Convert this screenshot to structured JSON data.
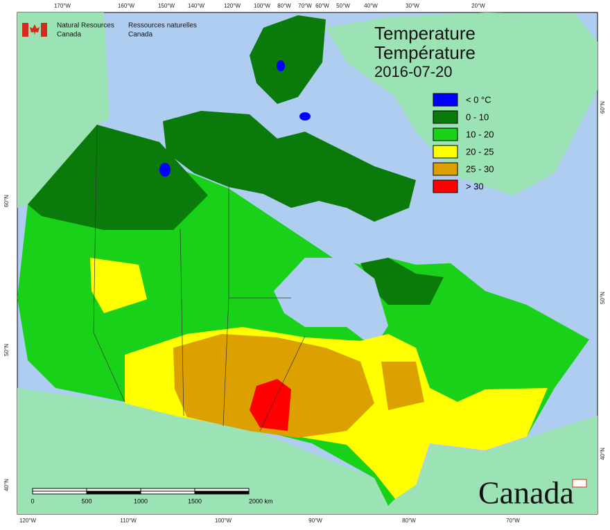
{
  "logo": {
    "english": [
      "Natural Resources",
      "Canada"
    ],
    "french": [
      "Ressources naturelles",
      "Canada"
    ]
  },
  "title": [
    "Temperature",
    "Température",
    "2016-07-20"
  ],
  "legend": [
    {
      "label": "< 0 °C",
      "color": "#0000ff"
    },
    {
      "label": "0 - 10",
      "color": "#0a7a0a"
    },
    {
      "label": "10 - 20",
      "color": "#19d119"
    },
    {
      "label": "20 - 25",
      "color": "#ffff00"
    },
    {
      "label": "25 - 30",
      "color": "#dca000"
    },
    {
      "label": "> 30",
      "color": "#ff0000"
    }
  ],
  "graticule": {
    "top": [
      "170°W",
      "160°W",
      "150°W",
      "140°W",
      "120°W",
      "100°W",
      "80°W",
      "70°W",
      "60°W",
      "50°W",
      "40°W",
      "30°W",
      "20°W"
    ],
    "bottom": [
      "120°W",
      "110°W",
      "100°W",
      "90°W",
      "80°W",
      "70°W"
    ],
    "left": [
      "60°N",
      "50°N",
      "40°N"
    ],
    "right": [
      "60°N",
      "50°N",
      "40°N"
    ]
  },
  "scale_bar": [
    "0",
    "500",
    "1000",
    "1500",
    "2000 km"
  ],
  "wordmark": "Canada"
}
